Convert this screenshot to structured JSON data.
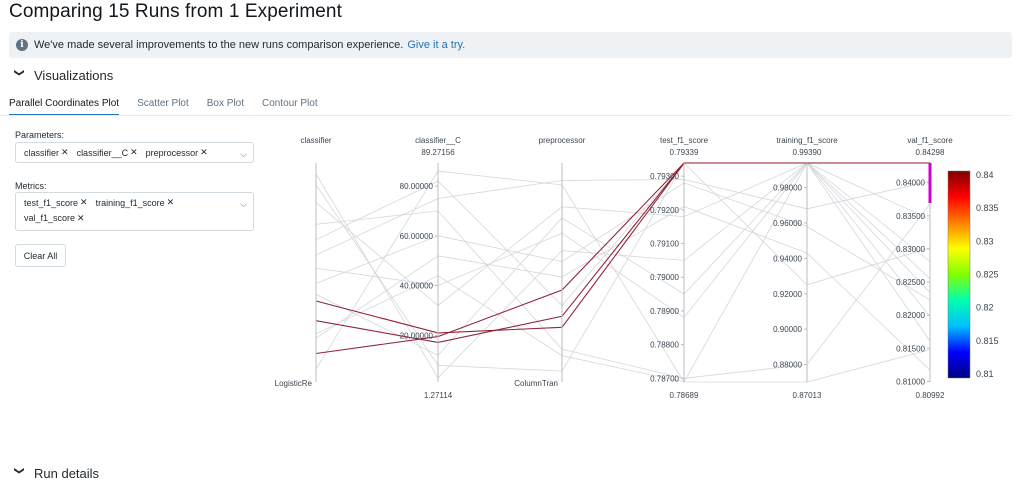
{
  "header": {
    "title": "Comparing 15 Runs from 1 Experiment"
  },
  "banner": {
    "icon": "info-icon",
    "text": "We've made several improvements to the new runs comparison experience.",
    "link": "Give it a try."
  },
  "sections": {
    "visualizations": "Visualizations",
    "run_details": "Run details"
  },
  "tabs": [
    {
      "label": "Parallel Coordinates Plot",
      "active": true
    },
    {
      "label": "Scatter Plot",
      "active": false
    },
    {
      "label": "Box Plot",
      "active": false
    },
    {
      "label": "Contour Plot",
      "active": false
    }
  ],
  "controls": {
    "parameters_label": "Parameters:",
    "parameters": [
      "classifier",
      "classifier__C",
      "preprocessor"
    ],
    "metrics_label": "Metrics:",
    "metrics": [
      "test_f1_score",
      "training_f1_score",
      "val_f1_score"
    ],
    "clear_all": "Clear All"
  },
  "chart_data": {
    "type": "parallel_coordinates",
    "axes": [
      {
        "name": "classifier",
        "categorical": true,
        "top_label": "",
        "bottom_label": "LogisticRe",
        "ticks": []
      },
      {
        "name": "classifier__C",
        "range": [
          1.27114,
          89.27156
        ],
        "top_label": "89.27156",
        "bottom_label": "1.27114",
        "ticks": [
          "80.00000",
          "60.00000",
          "40.00000",
          "20.00000"
        ]
      },
      {
        "name": "preprocessor",
        "categorical": true,
        "top_label": "",
        "bottom_label": "ColumnTran",
        "ticks": []
      },
      {
        "name": "test_f1_score",
        "range": [
          0.78689,
          0.79339
        ],
        "top_label": "0.79339",
        "bottom_label": "0.78689",
        "ticks": [
          "0.79300",
          "0.79200",
          "0.79100",
          "0.79000",
          "0.78900",
          "0.78800",
          "0.78700"
        ]
      },
      {
        "name": "training_f1_score",
        "range": [
          0.87013,
          0.9939
        ],
        "top_label": "0.99390",
        "bottom_label": "0.87013",
        "ticks": [
          "0.98000",
          "0.96000",
          "0.94000",
          "0.92000",
          "0.90000",
          "0.88000"
        ]
      },
      {
        "name": "val_f1_score",
        "range": [
          0.80992,
          0.84298
        ],
        "top_label": "0.84298",
        "bottom_label": "0.80992",
        "ticks": [
          "0.84000",
          "0.83500",
          "0.83000",
          "0.82500",
          "0.82000",
          "0.81500",
          "0.81000"
        ]
      }
    ],
    "colorscale": {
      "range": [
        0.81,
        0.84
      ],
      "ticks": [
        "0.84",
        "0.835",
        "0.83",
        "0.825",
        "0.82",
        "0.815",
        "0.81"
      ],
      "stops": [
        "#000080",
        "#0000ff",
        "#00bfff",
        "#00ffb0",
        "#80ff00",
        "#ffff00",
        "#ff8000",
        "#ff0000",
        "#800000"
      ]
    },
    "constraint": {
      "axis": "val_f1_score",
      "color": "#d000d0"
    },
    "highlight_color": "#8b1a2e",
    "background_color": "#cfd3d7",
    "runs": [
      {
        "values": [
          0.13,
          19.5,
          0.42,
          0.79339,
          0.9939,
          0.84298
        ],
        "highlighted": true
      },
      {
        "values": [
          0.28,
          17.2,
          0.3,
          0.79339,
          0.9939,
          0.84298
        ],
        "highlighted": true
      },
      {
        "values": [
          0.37,
          21.0,
          0.25,
          0.79339,
          0.9939,
          0.84298
        ],
        "highlighted": true
      },
      {
        "values": [
          0.06,
          86.0,
          0.9,
          0.78689,
          0.9939,
          0.8255
        ]
      },
      {
        "values": [
          0.45,
          60.0,
          0.55,
          0.7928,
          0.958,
          0.8223
        ]
      },
      {
        "values": [
          0.52,
          40.0,
          0.68,
          0.7888,
          0.9939,
          0.8161
        ]
      },
      {
        "values": [
          0.65,
          82.0,
          0.35,
          0.79339,
          0.9939,
          0.8281
        ]
      },
      {
        "values": [
          0.72,
          70.0,
          0.15,
          0.787,
          0.88,
          0.8368
        ]
      },
      {
        "values": [
          0.82,
          32.0,
          0.8,
          0.7918,
          0.9939,
          0.8345
        ]
      },
      {
        "values": [
          0.9,
          8.0,
          0.05,
          0.79339,
          0.925,
          0.8302
        ]
      },
      {
        "values": [
          0.95,
          3.0,
          0.6,
          0.7905,
          0.9939,
          0.8198
        ]
      },
      {
        "values": [
          0.58,
          75.0,
          0.92,
          0.7929,
          0.968,
          0.8402
        ]
      },
      {
        "values": [
          0.22,
          44.0,
          0.12,
          0.78689,
          0.87013,
          0.8148
        ]
      },
      {
        "values": [
          0.4,
          12.0,
          0.75,
          0.7895,
          0.9939,
          0.8234
        ]
      },
      {
        "values": [
          0.2,
          52.0,
          0.48,
          0.7921,
          0.943,
          0.8117
        ]
      }
    ]
  }
}
